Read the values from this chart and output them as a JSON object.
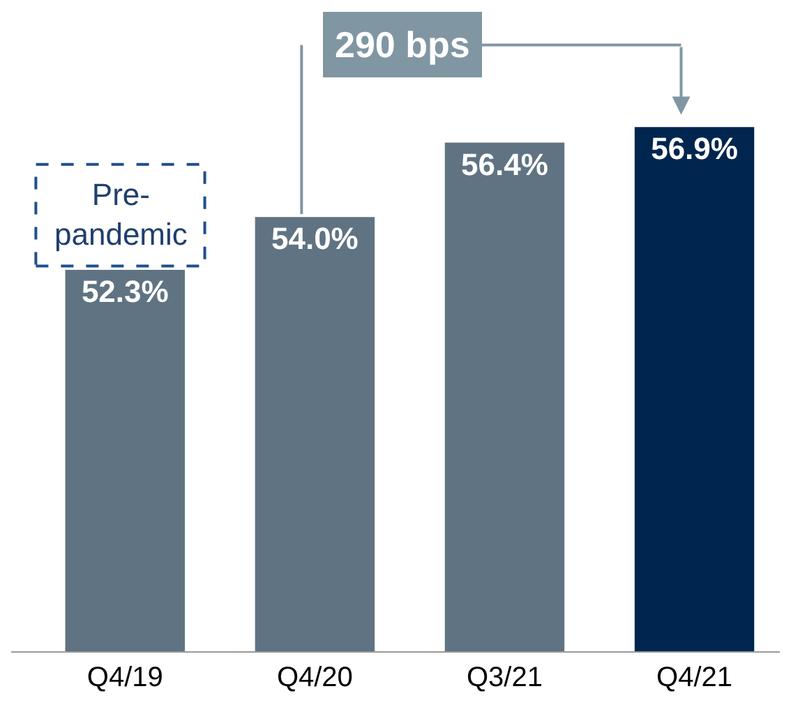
{
  "chart_data": {
    "type": "bar",
    "categories": [
      "Q4/19",
      "Q4/20",
      "Q3/21",
      "Q4/21"
    ],
    "values": [
      52.3,
      54.0,
      56.4,
      56.9
    ],
    "colors": [
      "#5f7382",
      "#5f7382",
      "#5f7382",
      "#00264f"
    ],
    "ylim": [
      40,
      61
    ],
    "value_labels": [
      "52.3%",
      "54.0%",
      "56.4%",
      "56.9%"
    ],
    "annotations": [
      "Pre-\npandemic",
      "290 bps"
    ]
  }
}
